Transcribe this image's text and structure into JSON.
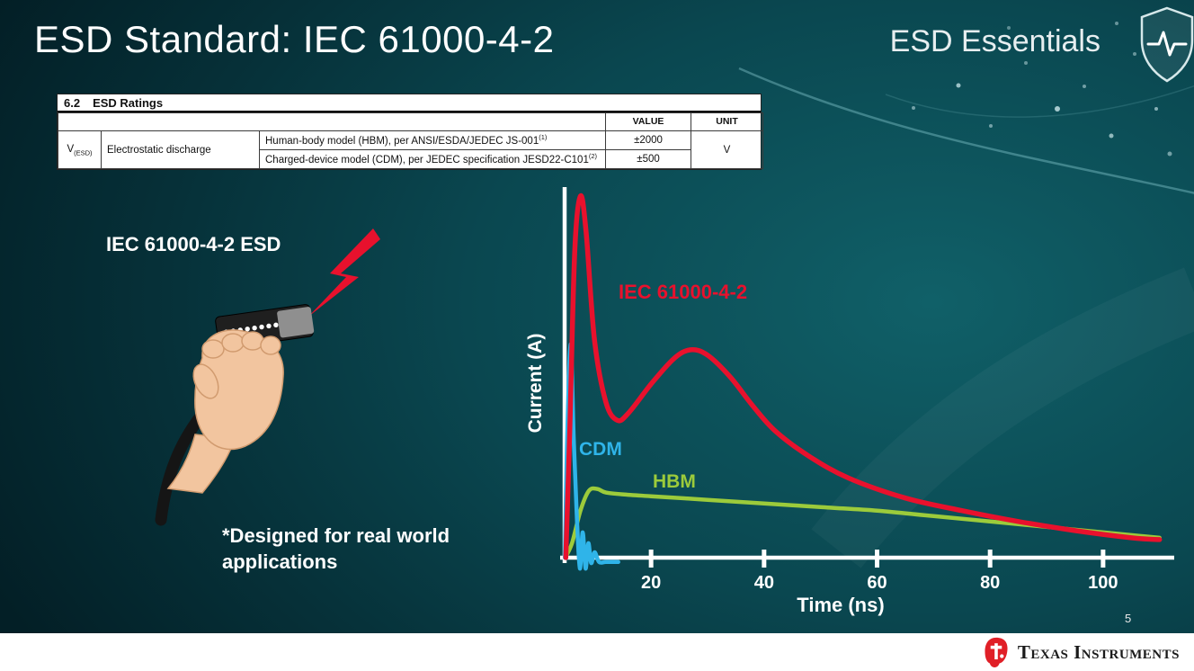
{
  "slide": {
    "title": "ESD Standard: IEC 61000-4-2",
    "series_brand": "ESD Essentials",
    "page_number": "5"
  },
  "ratings_table": {
    "section_number": "6.2",
    "section_title": "ESD Ratings",
    "col_value": "VALUE",
    "col_unit": "UNIT",
    "param_symbol": "V",
    "param_subscript": "(ESD)",
    "param_name": "Electrostatic discharge",
    "rows": [
      {
        "description": "Human-body model (HBM), per ANSI/ESDA/JEDEC JS-001",
        "superscript": "(1)",
        "value": "±2000"
      },
      {
        "description": "Charged-device model (CDM), per JEDEC specification JESD22-C101",
        "superscript": "(2)",
        "value": "±500"
      }
    ],
    "unit": "V"
  },
  "illustration": {
    "label": "IEC 61000-4-2 ESD",
    "caption": "*Designed for real world applications"
  },
  "chart_data": {
    "type": "line",
    "title": "",
    "xlabel": "Time (ns)",
    "ylabel": "Current (A)",
    "x_ticks": [
      20,
      40,
      60,
      80,
      100
    ],
    "xlim": [
      0,
      110
    ],
    "ylim": [
      0,
      1.05
    ],
    "grid": false,
    "legend_position": "inline-labels",
    "y_axis_note": "y axis has no numeric labels; y values below are relative amplitude where 1.0 = IEC 61000-4-2 first peak",
    "series": [
      {
        "name": "IEC 61000-4-2",
        "color": "#e8112d",
        "x": [
          4.9,
          5.6,
          6.5,
          7.5,
          8.5,
          10,
          12,
          14,
          16,
          20,
          24,
          27,
          30,
          34,
          38,
          42,
          48,
          55,
          65,
          75,
          85,
          95,
          105,
          110
        ],
        "y": [
          0,
          0.35,
          0.85,
          1.0,
          0.9,
          0.6,
          0.43,
          0.38,
          0.4,
          0.48,
          0.55,
          0.575,
          0.56,
          0.5,
          0.42,
          0.35,
          0.28,
          0.22,
          0.165,
          0.13,
          0.1,
          0.075,
          0.055,
          0.05
        ]
      },
      {
        "name": "CDM",
        "color": "#2fb4e9",
        "x": [
          4.75,
          5.1,
          5.75,
          6.3,
          6.9,
          7.4,
          7.9,
          8.4,
          8.9,
          9.4,
          10,
          10.8,
          12,
          14.2
        ],
        "y": [
          0,
          0.3,
          0.59,
          0.33,
          0.1,
          -0.03,
          0.07,
          -0.03,
          0.04,
          -0.015,
          0.015,
          -0.012,
          -0.012,
          -0.012
        ]
      },
      {
        "name": "HBM",
        "color": "#9ccb3b",
        "x": [
          4.8,
          6,
          7.5,
          9,
          10.5,
          12,
          15,
          20,
          30,
          40,
          50,
          60,
          70,
          80,
          90,
          100,
          110
        ],
        "y": [
          0,
          0.04,
          0.13,
          0.185,
          0.19,
          0.18,
          0.175,
          0.17,
          0.16,
          0.15,
          0.14,
          0.13,
          0.115,
          0.1,
          0.085,
          0.07,
          0.055
        ]
      }
    ]
  },
  "footer": {
    "brand": "Texas Instruments"
  }
}
